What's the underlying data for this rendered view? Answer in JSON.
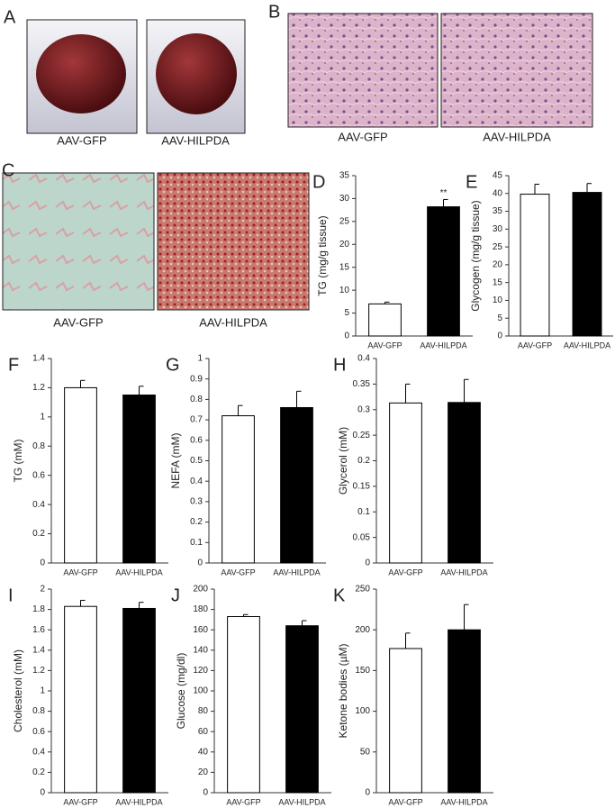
{
  "image_panels": [
    {
      "label": "A",
      "captions": [
        "AAV-GFP",
        "AAV-HILPDA"
      ]
    },
    {
      "label": "B",
      "captions": [
        "AAV-GFP",
        "AAV-HILPDA"
      ]
    },
    {
      "label": "C",
      "captions": [
        "AAV-GFP",
        "AAV-HILPDA"
      ]
    }
  ],
  "chart_data": [
    {
      "type": "bar",
      "label": "D",
      "ylabel": "TG (mg/g tissue)",
      "categories": [
        "AAV-GFP",
        "AAV-HILPDA"
      ],
      "values": [
        7.0,
        28.2
      ],
      "errors": [
        0.4,
        1.6
      ],
      "colors": [
        "#ffffff",
        "#000000"
      ],
      "ylim": [
        0,
        35
      ],
      "yticks": [
        0,
        5,
        10,
        15,
        20,
        25,
        30,
        35
      ],
      "annotation": "**"
    },
    {
      "type": "bar",
      "label": "E",
      "ylabel": "Glycogen (mg/g tissue)",
      "categories": [
        "AAV-GFP",
        "AAV-HILPDA"
      ],
      "values": [
        39.8,
        40.3
      ],
      "errors": [
        2.8,
        2.5
      ],
      "colors": [
        "#ffffff",
        "#000000"
      ],
      "ylim": [
        0,
        45
      ],
      "yticks": [
        0,
        5,
        10,
        15,
        20,
        25,
        30,
        35,
        40,
        45
      ]
    },
    {
      "type": "bar",
      "label": "F",
      "ylabel": "TG (mM)",
      "categories": [
        "AAV-GFP",
        "AAV-HILPDA"
      ],
      "values": [
        1.2,
        1.15
      ],
      "errors": [
        0.05,
        0.06
      ],
      "colors": [
        "#ffffff",
        "#000000"
      ],
      "ylim": [
        0,
        1.4
      ],
      "yticks": [
        0,
        0.2,
        0.4,
        0.6,
        0.8,
        1,
        1.2,
        1.4
      ]
    },
    {
      "type": "bar",
      "label": "G",
      "ylabel": "NEFA (mM)",
      "categories": [
        "AAV-GFP",
        "AAV-HILPDA"
      ],
      "values": [
        0.72,
        0.76
      ],
      "errors": [
        0.05,
        0.08
      ],
      "colors": [
        "#ffffff",
        "#000000"
      ],
      "ylim": [
        0,
        1
      ],
      "yticks": [
        0,
        0.1,
        0.2,
        0.3,
        0.4,
        0.5,
        0.6,
        0.7,
        0.8,
        0.9,
        1
      ]
    },
    {
      "type": "bar",
      "label": "H",
      "ylabel": "Glycerol (mM)",
      "categories": [
        "AAV-GFP",
        "AAV-HILPDA"
      ],
      "values": [
        0.313,
        0.314
      ],
      "errors": [
        0.037,
        0.045
      ],
      "colors": [
        "#ffffff",
        "#000000"
      ],
      "ylim": [
        0,
        0.4
      ],
      "yticks": [
        0,
        0.05,
        0.1,
        0.15,
        0.2,
        0.25,
        0.3,
        0.35,
        0.4
      ]
    },
    {
      "type": "bar",
      "label": "I",
      "ylabel": "Cholesterol (mM)",
      "categories": [
        "AAV-GFP",
        "AAV-HILPDA"
      ],
      "values": [
        1.83,
        1.81
      ],
      "errors": [
        0.06,
        0.06
      ],
      "colors": [
        "#ffffff",
        "#000000"
      ],
      "ylim": [
        0,
        2
      ],
      "yticks": [
        0,
        0.2,
        0.4,
        0.6,
        0.8,
        1,
        1.2,
        1.4,
        1.6,
        1.8,
        2
      ]
    },
    {
      "type": "bar",
      "label": "J",
      "ylabel": "Glucose (mg/dl)",
      "categories": [
        "AAV-GFP",
        "AAV-HILPDA"
      ],
      "values": [
        173,
        164
      ],
      "errors": [
        2,
        5
      ],
      "colors": [
        "#ffffff",
        "#000000"
      ],
      "ylim": [
        0,
        200
      ],
      "yticks": [
        0,
        20,
        40,
        60,
        80,
        100,
        120,
        140,
        160,
        180,
        200
      ]
    },
    {
      "type": "bar",
      "label": "K",
      "ylabel": "Ketone bodies (µM)",
      "categories": [
        "AAV-GFP",
        "AAV-HILPDA"
      ],
      "values": [
        177,
        200
      ],
      "errors": [
        19,
        31
      ],
      "colors": [
        "#ffffff",
        "#000000"
      ],
      "ylim": [
        0,
        250
      ],
      "yticks": [
        0,
        50,
        100,
        150,
        200,
        250
      ]
    }
  ]
}
